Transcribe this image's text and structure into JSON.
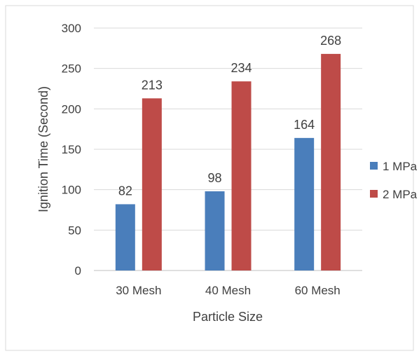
{
  "chart_data": {
    "type": "bar",
    "title": "",
    "xlabel": "Particle Size",
    "ylabel": "Ignition Time (Second)",
    "categories": [
      "30 Mesh",
      "40 Mesh",
      "60 Mesh"
    ],
    "series": [
      {
        "name": "1 MPa",
        "values": [
          82,
          98,
          164
        ],
        "color": "#4a7ebb"
      },
      {
        "name": "2 MPa",
        "values": [
          213,
          234,
          268
        ],
        "color": "#be4b48"
      }
    ],
    "ylim": [
      0,
      300
    ],
    "yticks": [
      0,
      50,
      100,
      150,
      200,
      250,
      300
    ],
    "grid": true,
    "legend_position": "right",
    "data_labels": true
  }
}
